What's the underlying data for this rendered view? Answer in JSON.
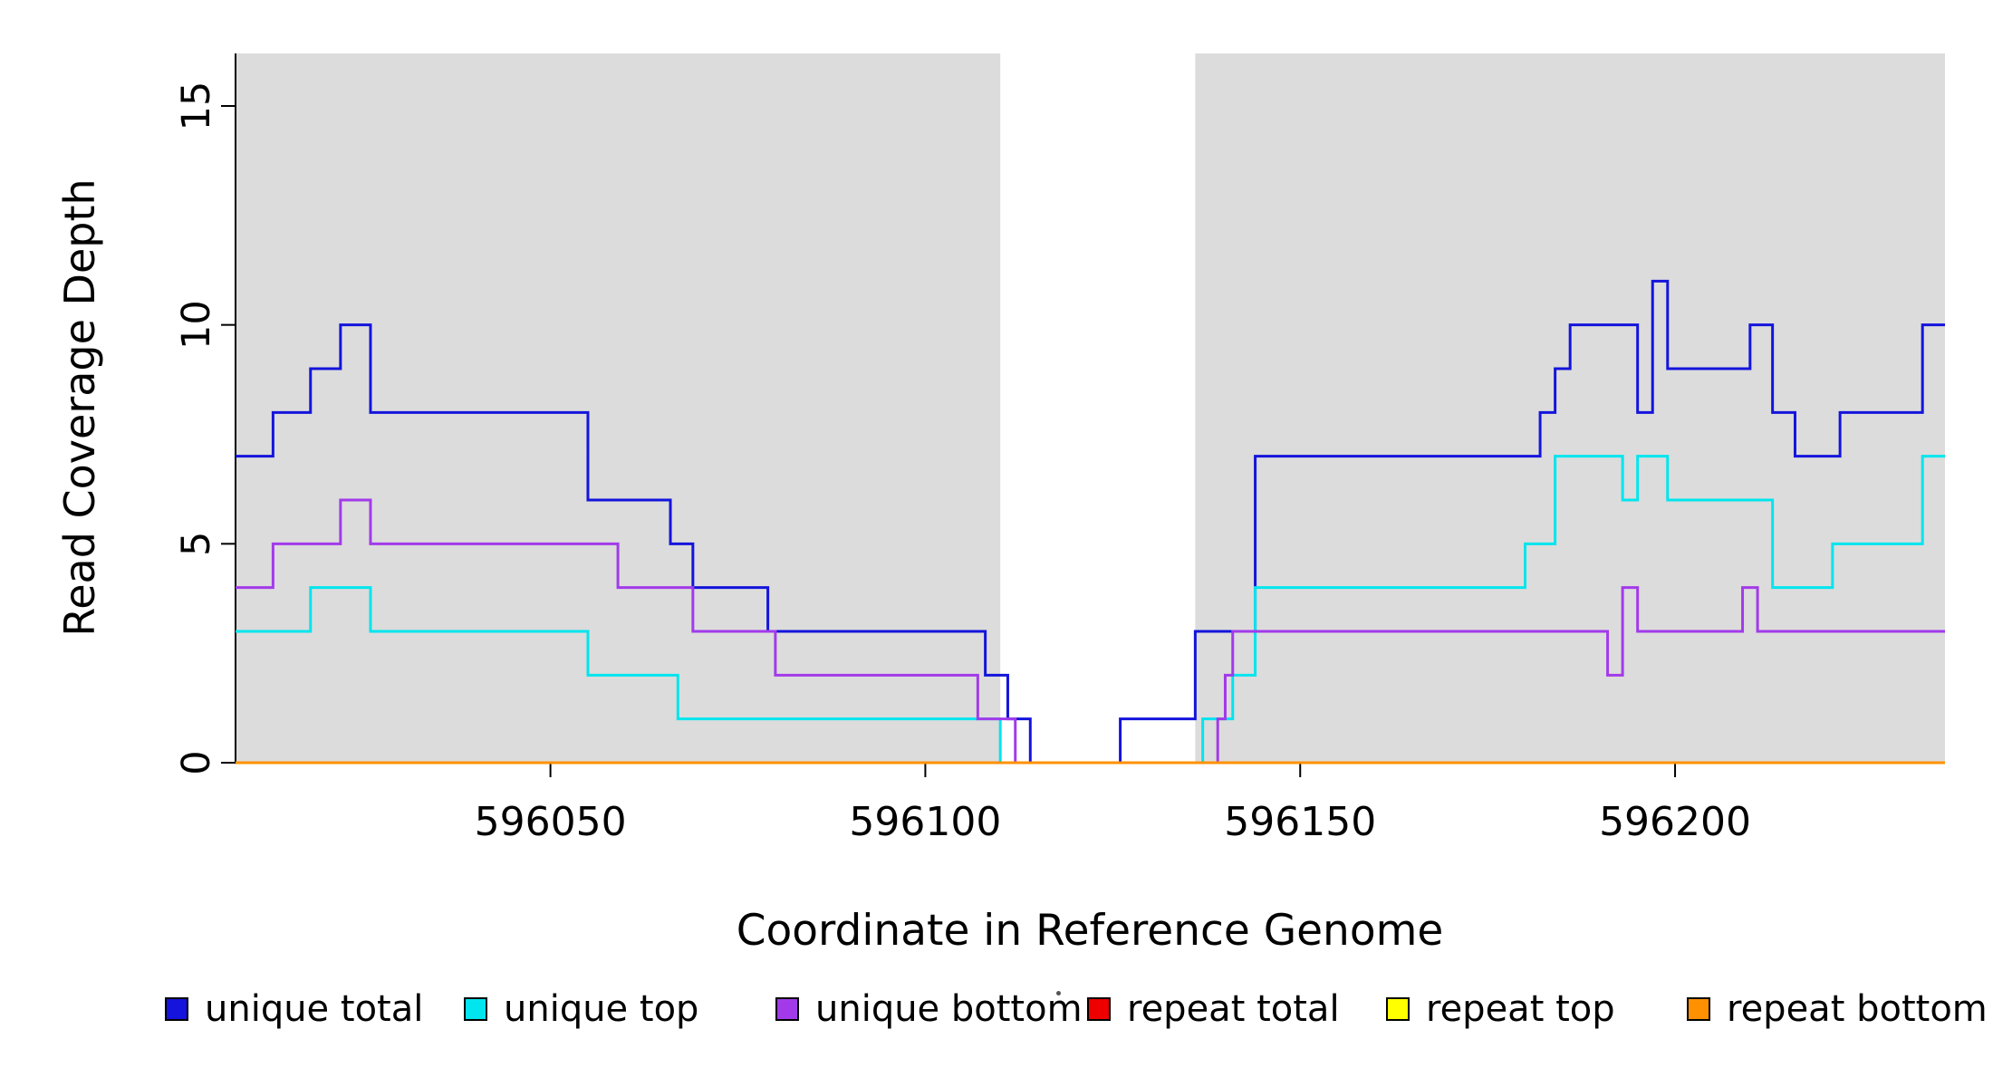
{
  "chart_data": {
    "type": "line",
    "step": true,
    "title": "",
    "xlabel": "Coordinate in Reference Genome",
    "ylabel": "Read Coverage Depth",
    "xlim": [
      596008,
      596236
    ],
    "ylim": [
      0,
      16.2
    ],
    "x_ticks": [
      596050,
      596100,
      596150,
      596200
    ],
    "y_ticks": [
      0,
      5,
      10,
      15
    ],
    "grid": false,
    "legend_position": "bottom",
    "background_color": "#FFFFFF",
    "axis_color": "#000000",
    "shaded_regions": [
      {
        "x0": 596008,
        "x1": 596110,
        "color": "#DCDCDC"
      },
      {
        "x0": 596136,
        "x1": 596236,
        "color": "#DCDCDC"
      }
    ],
    "series": [
      {
        "name": "unique total",
        "color": "#1414DC",
        "steps": [
          [
            596008,
            7
          ],
          [
            596013,
            8
          ],
          [
            596018,
            9
          ],
          [
            596022,
            10
          ],
          [
            596026,
            8
          ],
          [
            596055,
            6
          ],
          [
            596066,
            5
          ],
          [
            596069,
            4
          ],
          [
            596079,
            3
          ],
          [
            596108,
            2
          ],
          [
            596111,
            1
          ],
          [
            596114,
            0
          ],
          [
            596126,
            1
          ],
          [
            596136,
            3
          ],
          [
            596144,
            7
          ],
          [
            596182,
            8
          ],
          [
            596184,
            9
          ],
          [
            596186,
            10
          ],
          [
            596195,
            8
          ],
          [
            596197,
            11
          ],
          [
            596199,
            9
          ],
          [
            596210,
            10
          ],
          [
            596213,
            8
          ],
          [
            596216,
            7
          ],
          [
            596222,
            8
          ],
          [
            596233,
            10
          ]
        ]
      },
      {
        "name": "unique top",
        "color": "#00E5EE",
        "steps": [
          [
            596008,
            3
          ],
          [
            596018,
            4
          ],
          [
            596026,
            3
          ],
          [
            596055,
            2
          ],
          [
            596067,
            1
          ],
          [
            596110,
            0
          ],
          [
            596137,
            1
          ],
          [
            596141,
            2
          ],
          [
            596144,
            4
          ],
          [
            596180,
            5
          ],
          [
            596184,
            7
          ],
          [
            596193,
            6
          ],
          [
            596195,
            7
          ],
          [
            596199,
            6
          ],
          [
            596213,
            4
          ],
          [
            596221,
            5
          ],
          [
            596233,
            7
          ]
        ]
      },
      {
        "name": "unique bottom",
        "color": "#A23AEA",
        "steps": [
          [
            596008,
            4
          ],
          [
            596013,
            5
          ],
          [
            596022,
            6
          ],
          [
            596026,
            5
          ],
          [
            596059,
            4
          ],
          [
            596069,
            3
          ],
          [
            596080,
            2
          ],
          [
            596107,
            1
          ],
          [
            596112,
            0
          ],
          [
            596139,
            1
          ],
          [
            596140,
            2
          ],
          [
            596141,
            3
          ],
          [
            596191,
            2
          ],
          [
            596193,
            4
          ],
          [
            596195,
            3
          ],
          [
            596209,
            4
          ],
          [
            596211,
            3
          ]
        ]
      },
      {
        "name": "repeat total",
        "color": "#EE0000",
        "steps": [
          [
            596008,
            0
          ]
        ]
      },
      {
        "name": "repeat top",
        "color": "#FFFF00",
        "steps": [
          [
            596008,
            0
          ]
        ]
      },
      {
        "name": "repeat bottom",
        "color": "#FF9100",
        "steps": [
          [
            596008,
            0
          ]
        ]
      }
    ]
  }
}
